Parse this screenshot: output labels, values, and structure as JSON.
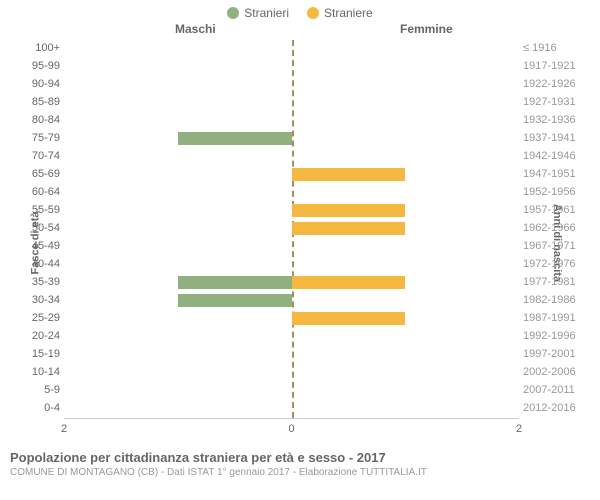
{
  "legend": {
    "male": "Stranieri",
    "female": "Straniere"
  },
  "colors": {
    "male": "#90b080",
    "female": "#f5b942",
    "center_line": "#a09060",
    "tick_left": "#666666",
    "tick_right": "#999999"
  },
  "headers": {
    "male": "Maschi",
    "female": "Femmine"
  },
  "left_axis_title": "Fasce di età",
  "right_axis_title": "Anni di nascita",
  "x_axis": {
    "max": 2,
    "ticks": [
      2,
      0,
      2
    ]
  },
  "rows": [
    {
      "age": "100+",
      "years": "≤ 1916",
      "male": 0,
      "female": 0
    },
    {
      "age": "95-99",
      "years": "1917-1921",
      "male": 0,
      "female": 0
    },
    {
      "age": "90-94",
      "years": "1922-1926",
      "male": 0,
      "female": 0
    },
    {
      "age": "85-89",
      "years": "1927-1931",
      "male": 0,
      "female": 0
    },
    {
      "age": "80-84",
      "years": "1932-1936",
      "male": 0,
      "female": 0
    },
    {
      "age": "75-79",
      "years": "1937-1941",
      "male": 1,
      "female": 0
    },
    {
      "age": "70-74",
      "years": "1942-1946",
      "male": 0,
      "female": 0
    },
    {
      "age": "65-69",
      "years": "1947-1951",
      "male": 0,
      "female": 1
    },
    {
      "age": "60-64",
      "years": "1952-1956",
      "male": 0,
      "female": 0
    },
    {
      "age": "55-59",
      "years": "1957-1961",
      "male": 0,
      "female": 1
    },
    {
      "age": "50-54",
      "years": "1962-1966",
      "male": 0,
      "female": 1
    },
    {
      "age": "45-49",
      "years": "1967-1971",
      "male": 0,
      "female": 0
    },
    {
      "age": "40-44",
      "years": "1972-1976",
      "male": 0,
      "female": 0
    },
    {
      "age": "35-39",
      "years": "1977-1981",
      "male": 1,
      "female": 1
    },
    {
      "age": "30-34",
      "years": "1982-1986",
      "male": 1,
      "female": 0
    },
    {
      "age": "25-29",
      "years": "1987-1991",
      "male": 0,
      "female": 1
    },
    {
      "age": "20-24",
      "years": "1992-1996",
      "male": 0,
      "female": 0
    },
    {
      "age": "15-19",
      "years": "1997-2001",
      "male": 0,
      "female": 0
    },
    {
      "age": "10-14",
      "years": "2002-2006",
      "male": 0,
      "female": 0
    },
    {
      "age": "5-9",
      "years": "2007-2011",
      "male": 0,
      "female": 0
    },
    {
      "age": "0-4",
      "years": "2012-2016",
      "male": 0,
      "female": 0
    }
  ],
  "footer": {
    "title": "Popolazione per cittadinanza straniera per età e sesso - 2017",
    "subtitle": "COMUNE DI MONTAGANO (CB) - Dati ISTAT 1° gennaio 2017 - Elaborazione TUTTITALIA.IT"
  }
}
